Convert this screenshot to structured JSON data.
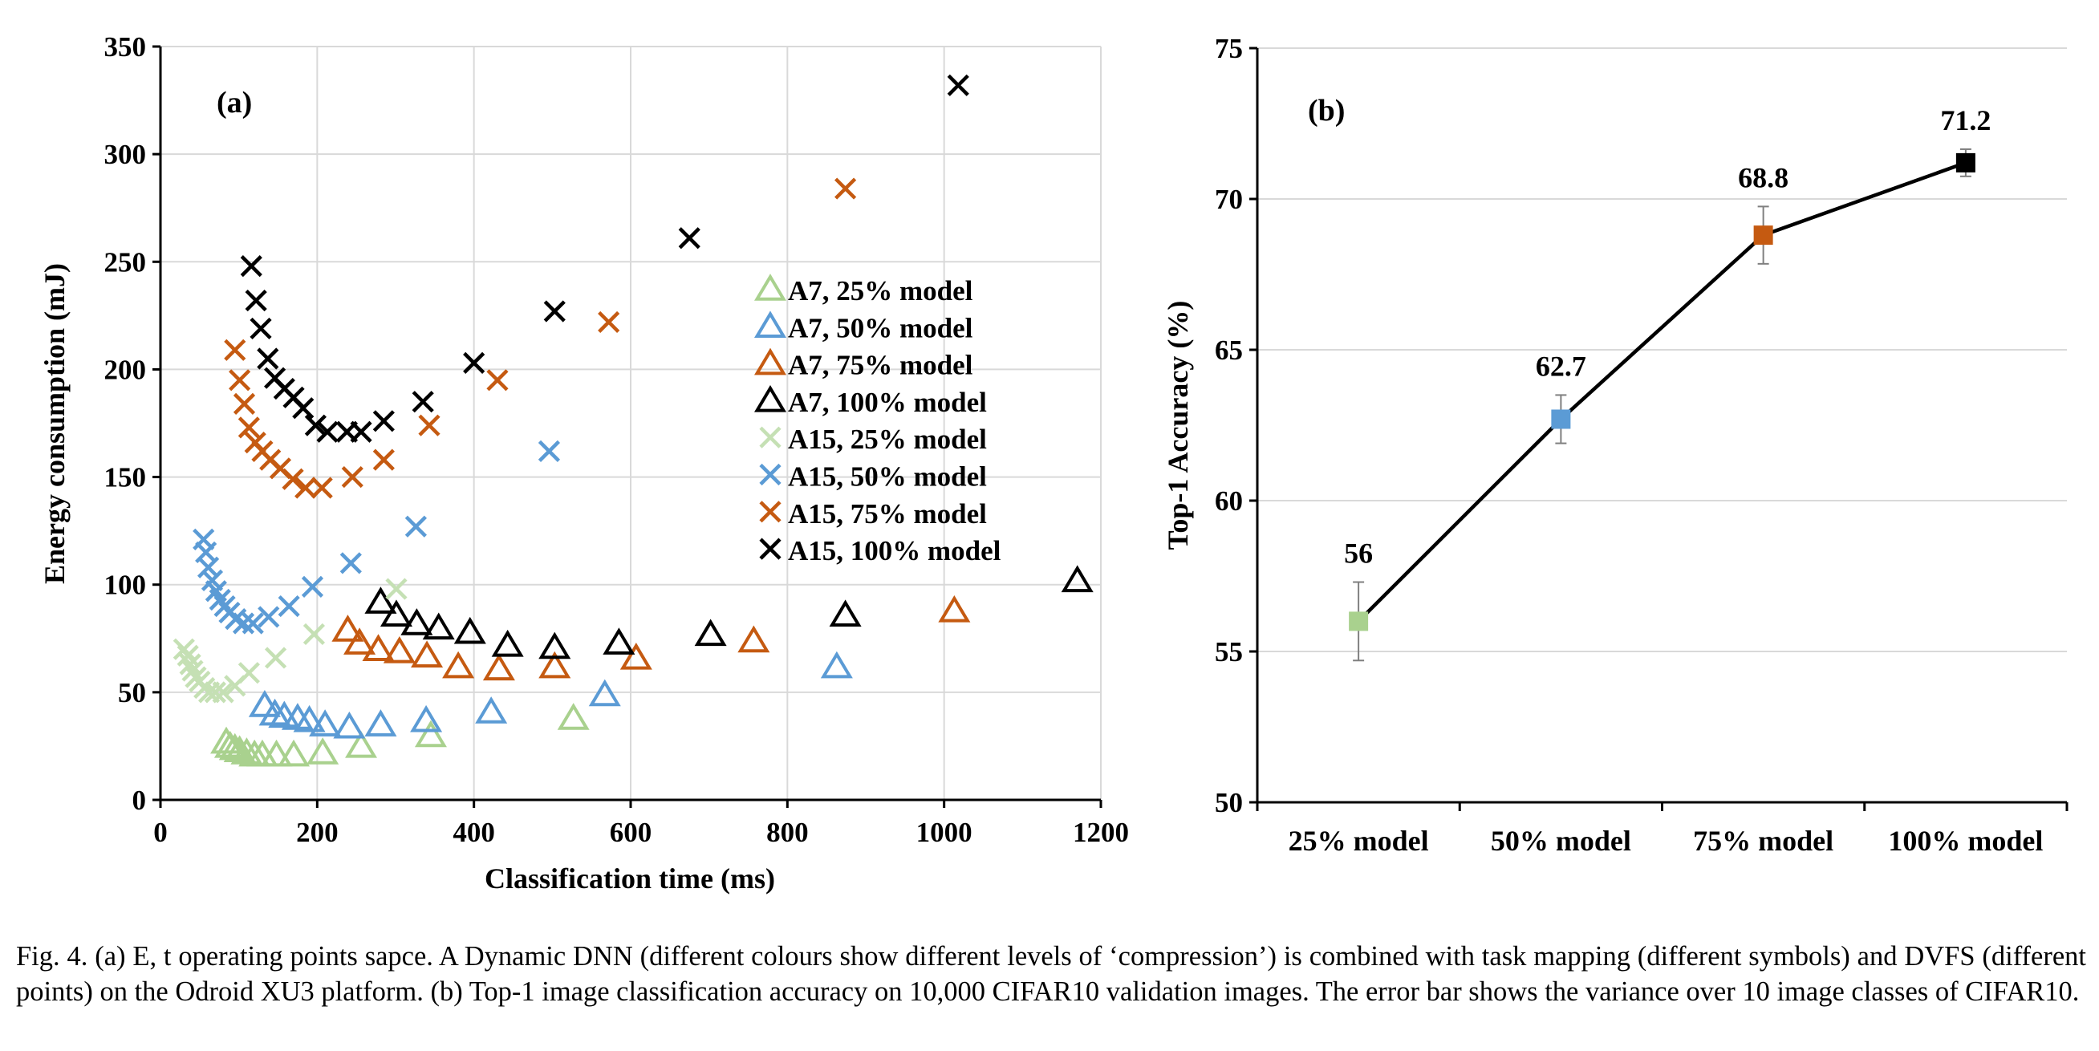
{
  "chart_data": [
    {
      "type": "scatter",
      "panel_label": "(a)",
      "xlabel": "Classification time (ms)",
      "ylabel": "Energy consumption (mJ)",
      "xlim": [
        0,
        1200
      ],
      "ylim": [
        0,
        350
      ],
      "xticks": [
        "0",
        "200",
        "400",
        "600",
        "800",
        "1000",
        "1200"
      ],
      "yticks": [
        "0",
        "50",
        "100",
        "150",
        "200",
        "250",
        "300",
        "350"
      ],
      "grid": true,
      "legend_position": "right-middle",
      "series": [
        {
          "name": "A7, 25% model",
          "marker": "triangle",
          "color": "#A9D18E",
          "points": [
            [
              84,
              27
            ],
            [
              89,
              25
            ],
            [
              95,
              24
            ],
            [
              101,
              23
            ],
            [
              110,
              22
            ],
            [
              120,
              21
            ],
            [
              130,
              21
            ],
            [
              148,
              21
            ],
            [
              170,
              21
            ],
            [
              207,
              22
            ],
            [
              256,
              25
            ],
            [
              345,
              30
            ],
            [
              527,
              38
            ]
          ]
        },
        {
          "name": "A7, 50% model",
          "marker": "triangle",
          "color": "#5B9BD5",
          "points": [
            [
              133,
              44
            ],
            [
              146,
              40
            ],
            [
              158,
              39
            ],
            [
              175,
              38
            ],
            [
              190,
              37
            ],
            [
              210,
              35
            ],
            [
              241,
              34
            ],
            [
              281,
              35
            ],
            [
              339,
              37
            ],
            [
              422,
              41
            ],
            [
              567,
              49
            ],
            [
              863,
              62
            ]
          ]
        },
        {
          "name": "A7, 75% model",
          "marker": "triangle",
          "color": "#C55A11",
          "points": [
            [
              239,
              79
            ],
            [
              254,
              73
            ],
            [
              278,
              70
            ],
            [
              305,
              69
            ],
            [
              340,
              67
            ],
            [
              380,
              62
            ],
            [
              432,
              61
            ],
            [
              503,
              62
            ],
            [
              607,
              66
            ],
            [
              757,
              74
            ],
            [
              1013,
              88
            ]
          ]
        },
        {
          "name": "A7, 100% model",
          "marker": "triangle",
          "color": "#000000",
          "points": [
            [
              281,
              92
            ],
            [
              301,
              86
            ],
            [
              327,
              82
            ],
            [
              355,
              80
            ],
            [
              395,
              78
            ],
            [
              443,
              72
            ],
            [
              503,
              71
            ],
            [
              585,
              73
            ],
            [
              702,
              77
            ],
            [
              874,
              86
            ],
            [
              1170,
              102
            ]
          ]
        },
        {
          "name": "A15, 25% model",
          "marker": "x",
          "color": "#C5E0B4",
          "points": [
            [
              30,
              70
            ],
            [
              35,
              67
            ],
            [
              38,
              63
            ],
            [
              41,
              60
            ],
            [
              45,
              57
            ],
            [
              50,
              55
            ],
            [
              56,
              52
            ],
            [
              62,
              50
            ],
            [
              70,
              50
            ],
            [
              80,
              50
            ],
            [
              95,
              53
            ],
            [
              113,
              59
            ],
            [
              147,
              66
            ],
            [
              196,
              77
            ],
            [
              301,
              98
            ]
          ]
        },
        {
          "name": "A15, 50% model",
          "marker": "x",
          "color": "#5B9BD5",
          "points": [
            [
              55,
              121
            ],
            [
              58,
              115
            ],
            [
              61,
              108
            ],
            [
              66,
              102
            ],
            [
              71,
              97
            ],
            [
              76,
              93
            ],
            [
              82,
              90
            ],
            [
              88,
              87
            ],
            [
              96,
              84
            ],
            [
              106,
              82
            ],
            [
              118,
              82
            ],
            [
              138,
              85
            ],
            [
              164,
              90
            ],
            [
              194,
              99
            ],
            [
              243,
              110
            ],
            [
              326,
              127
            ],
            [
              496,
              162
            ]
          ]
        },
        {
          "name": "A15, 75% model",
          "marker": "x",
          "color": "#C55A11",
          "points": [
            [
              95,
              209
            ],
            [
              101,
              195
            ],
            [
              107,
              184
            ],
            [
              113,
              173
            ],
            [
              121,
              166
            ],
            [
              130,
              162
            ],
            [
              140,
              158
            ],
            [
              153,
              154
            ],
            [
              169,
              149
            ],
            [
              185,
              145
            ],
            [
              206,
              145
            ],
            [
              245,
              150
            ],
            [
              285,
              158
            ],
            [
              343,
              174
            ],
            [
              430,
              195
            ],
            [
              572,
              222
            ],
            [
              874,
              284
            ]
          ]
        },
        {
          "name": "A15, 100% model",
          "marker": "x",
          "color": "#000000",
          "points": [
            [
              116,
              248
            ],
            [
              122,
              232
            ],
            [
              128,
              219
            ],
            [
              137,
              205
            ],
            [
              146,
              196
            ],
            [
              158,
              191
            ],
            [
              170,
              187
            ],
            [
              182,
              182
            ],
            [
              198,
              174
            ],
            [
              213,
              171
            ],
            [
              238,
              171
            ],
            [
              256,
              171
            ],
            [
              285,
              176
            ],
            [
              335,
              185
            ],
            [
              400,
              203
            ],
            [
              503,
              227
            ],
            [
              675,
              261
            ],
            [
              1018,
              332
            ]
          ]
        }
      ]
    },
    {
      "type": "line",
      "panel_label": "(b)",
      "xlabel": "",
      "ylabel": "Top-1 Accuracy (%)",
      "ylim": [
        50,
        75
      ],
      "yticks": [
        "50",
        "55",
        "60",
        "65",
        "70",
        "75"
      ],
      "grid": true,
      "categories": [
        "25% model",
        "50% model",
        "75% model",
        "100% model"
      ],
      "values": [
        56,
        62.7,
        68.8,
        71.2
      ],
      "value_labels": [
        "56",
        "62.7",
        "68.8",
        "71.2"
      ],
      "error": [
        1.3,
        0.8,
        0.95,
        0.45
      ],
      "marker": "square",
      "marker_colors": [
        "#A9D18E",
        "#5B9BD5",
        "#C55A11",
        "#000000"
      ],
      "line_color": "#000000"
    }
  ],
  "caption": "Fig. 4.  (a) E, t operating points sapce. A Dynamic DNN (different colours show different levels of ‘compression’) is combined with task mapping (different symbols) and DVFS (different points) on the Odroid XU3 platform. (b) Top-1 image classification accuracy on 10,000 CIFAR10 validation images. The error bar shows the variance over 10 image classes of CIFAR10."
}
